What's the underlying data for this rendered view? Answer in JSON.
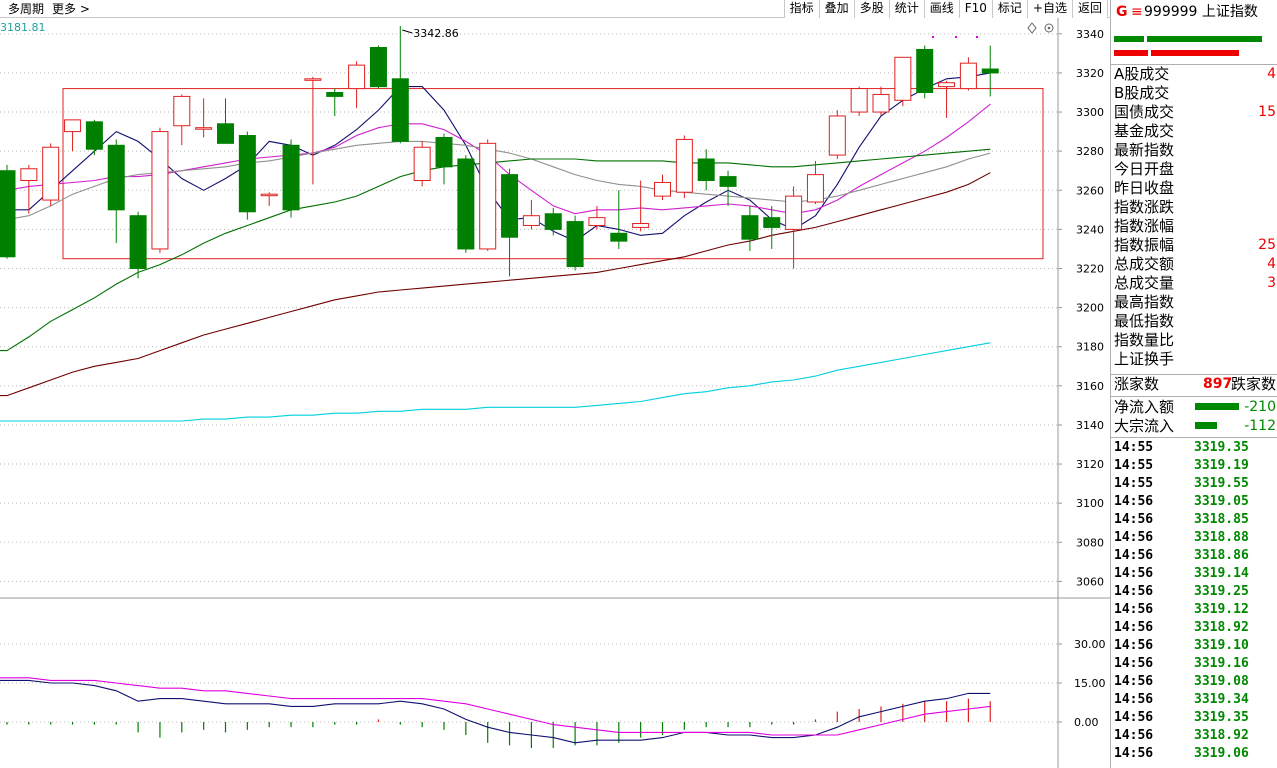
{
  "toolbar": {
    "period_label": "多周期",
    "more_label": "更多 >",
    "buttons": [
      "指标",
      "叠加",
      "多股",
      "统计",
      "画线",
      "F10",
      "标记",
      "+自选",
      "返回"
    ]
  },
  "chart_data": {
    "type": "candlestick",
    "top_left_label": "3181.81",
    "max_marker_label": "3342.86",
    "price_axis_ticks": [
      3340,
      3320,
      3300,
      3280,
      3260,
      3240,
      3220,
      3200,
      3180,
      3160,
      3140,
      3120,
      3100,
      3080,
      3060
    ],
    "price_range": [
      3051,
      3344
    ],
    "candles": [
      [
        3270,
        3226,
        3273,
        3225
      ],
      [
        3265,
        3271,
        3273,
        3248
      ],
      [
        3255,
        3282,
        3284,
        3252
      ],
      [
        3290,
        3296,
        3296,
        3280
      ],
      [
        3295,
        3281,
        3296,
        3278
      ],
      [
        3283,
        3250,
        3286,
        3233
      ],
      [
        3247,
        3220,
        3249,
        3215
      ],
      [
        3230,
        3290,
        3292,
        3228
      ],
      [
        3293,
        3308,
        3309,
        3283
      ],
      [
        3292,
        3292,
        3307,
        3287
      ],
      [
        3294,
        3284,
        3307,
        3284
      ],
      [
        3288,
        3249,
        3290,
        3245
      ],
      [
        3258,
        3258,
        3259,
        3252
      ],
      [
        3283,
        3250,
        3286,
        3246
      ],
      [
        3317,
        3317,
        3318,
        3263
      ],
      [
        3310,
        3308,
        3312,
        3298
      ],
      [
        3312,
        3324,
        3326,
        3302
      ],
      [
        3333,
        3313,
        3334,
        3312
      ],
      [
        3317,
        3285,
        3344,
        3284
      ],
      [
        3265,
        3282,
        3285,
        3262
      ],
      [
        3287,
        3272,
        3289,
        3263
      ],
      [
        3276,
        3230,
        3278,
        3228
      ],
      [
        3230,
        3284,
        3286,
        3229
      ],
      [
        3268,
        3236,
        3271,
        3216
      ],
      [
        3242,
        3247,
        3255,
        3240
      ],
      [
        3248,
        3240,
        3251,
        3237
      ],
      [
        3244,
        3221,
        3247,
        3219
      ],
      [
        3242,
        3246,
        3252,
        3240
      ],
      [
        3238,
        3234,
        3260,
        3230
      ],
      [
        3241,
        3243,
        3265,
        3239
      ],
      [
        3257,
        3264,
        3268,
        3255
      ],
      [
        3259,
        3286,
        3288,
        3256
      ],
      [
        3276,
        3265,
        3281,
        3260
      ],
      [
        3267,
        3262,
        3270,
        3252
      ],
      [
        3247,
        3235,
        3252,
        3229
      ],
      [
        3246,
        3241,
        3252,
        3230
      ],
      [
        3240,
        3257,
        3262,
        3220
      ],
      [
        3254,
        3268,
        3275,
        3253
      ],
      [
        3278,
        3298,
        3301,
        3276
      ],
      [
        3300,
        3312,
        3313,
        3298
      ],
      [
        3300,
        3309,
        3313,
        3298
      ],
      [
        3306,
        3328,
        3328,
        3303
      ],
      [
        3332,
        3310,
        3334,
        3307
      ],
      [
        3313,
        3315,
        3316,
        3297
      ],
      [
        3312,
        3325,
        3328,
        3311
      ],
      [
        3322,
        3320,
        3334,
        3308
      ]
    ],
    "ma_lines": [
      {
        "color": "#101070",
        "values": [
          3250,
          3250,
          3260,
          3270,
          3280,
          3290,
          3285,
          3276,
          3266,
          3260,
          3266,
          3273,
          3285,
          3283,
          3278,
          3283,
          3291,
          3301,
          3313,
          3313,
          3301,
          3283,
          3260,
          3245,
          3246,
          3239,
          3234,
          3242,
          3240,
          3237,
          3238,
          3247,
          3254,
          3260,
          3255,
          3245,
          3240,
          3247,
          3263,
          3282,
          3298,
          3306,
          3312,
          3317,
          3318,
          3320
        ]
      },
      {
        "color": "#d020d0",
        "values": [
          3260,
          3262,
          3263,
          3264,
          3265,
          3267,
          3267,
          3268,
          3270,
          3272,
          3274,
          3276,
          3277,
          3278,
          3279,
          3282,
          3288,
          3292,
          3294,
          3294,
          3291,
          3285,
          3278,
          3268,
          3260,
          3252,
          3248,
          3250,
          3250,
          3251,
          3250,
          3251,
          3252,
          3253,
          3252,
          3250,
          3248,
          3250,
          3255,
          3262,
          3268,
          3274,
          3280,
          3287,
          3295,
          3304
        ]
      },
      {
        "color": "#909090",
        "values": [
          3245,
          3247,
          3252,
          3258,
          3262,
          3266,
          3268,
          3269,
          3270,
          3271,
          3272,
          3274,
          3275,
          3277,
          3279,
          3281,
          3283,
          3284,
          3285,
          3285,
          3284,
          3283,
          3281,
          3279,
          3276,
          3272,
          3268,
          3265,
          3263,
          3262,
          3260,
          3259,
          3258,
          3257,
          3256,
          3255,
          3254,
          3255,
          3257,
          3260,
          3263,
          3266,
          3269,
          3272,
          3276,
          3279
        ]
      },
      {
        "color": "#007000",
        "values": [
          3178,
          3185,
          3193,
          3199,
          3205,
          3212,
          3218,
          3222,
          3227,
          3233,
          3238,
          3242,
          3246,
          3250,
          3252,
          3254,
          3257,
          3262,
          3267,
          3270,
          3272,
          3273,
          3274,
          3275,
          3276,
          3276,
          3276,
          3275,
          3275,
          3275,
          3275,
          3274,
          3274,
          3274,
          3273,
          3272,
          3272,
          3273,
          3274,
          3275,
          3276,
          3277,
          3278,
          3279,
          3280,
          3281
        ]
      },
      {
        "color": "#700000",
        "values": [
          3155,
          3159,
          3163,
          3167,
          3170,
          3172,
          3174,
          3178,
          3182,
          3186,
          3189,
          3192,
          3195,
          3198,
          3201,
          3204,
          3206,
          3208,
          3209,
          3210,
          3211,
          3212,
          3213,
          3214,
          3215,
          3216,
          3217,
          3218,
          3220,
          3222,
          3224,
          3226,
          3229,
          3232,
          3234,
          3237,
          3239,
          3241,
          3244,
          3247,
          3250,
          3253,
          3256,
          3259,
          3263,
          3269
        ]
      },
      {
        "color": "#00d0e0",
        "values": [
          3142,
          3142,
          3142,
          3142,
          3142,
          3142,
          3142,
          3142,
          3142,
          3143,
          3143,
          3144,
          3144,
          3145,
          3145,
          3146,
          3146,
          3147,
          3147,
          3148,
          3148,
          3148,
          3149,
          3149,
          3149,
          3149,
          3149,
          3150,
          3151,
          3152,
          3154,
          3156,
          3157,
          3159,
          3160,
          3162,
          3163,
          3165,
          3168,
          3170,
          3172,
          3174,
          3176,
          3178,
          3180,
          3182
        ]
      }
    ],
    "box_price_range": [
      3225,
      3312
    ],
    "indicator_axis_ticks": [
      30.0,
      15.0,
      0.0
    ],
    "indicator_range": [
      -10,
      40
    ],
    "indicator_lines": [
      {
        "color": "#101070",
        "values": [
          16,
          16,
          15,
          15,
          14,
          12,
          8,
          9,
          9,
          8,
          7,
          7,
          7,
          6,
          6,
          7,
          7,
          7,
          8,
          7,
          5,
          1,
          -2,
          -4,
          -5,
          -6,
          -8,
          -7,
          -7,
          -7,
          -6,
          -4,
          -4,
          -5,
          -5,
          -6,
          -6,
          -5,
          -2,
          2,
          4,
          6,
          8,
          9,
          11,
          11
        ]
      },
      {
        "color": "#e000e0",
        "values": [
          17,
          17,
          16,
          16,
          16,
          15,
          14,
          13,
          13,
          12,
          12,
          11,
          10,
          9,
          9,
          9,
          9,
          9,
          9,
          9,
          8,
          7,
          5,
          3,
          1,
          -1,
          -2,
          -3,
          -4,
          -4,
          -4,
          -4,
          -4,
          -4,
          -4,
          -5,
          -5,
          -5,
          -5,
          -3,
          -1,
          1,
          3,
          4,
          5,
          6
        ]
      }
    ],
    "indicator_bars": [
      -1,
      -1,
      -1,
      -1,
      -1,
      -1,
      -4,
      -6,
      -4,
      -3,
      -4,
      -3,
      -2,
      -2,
      -2,
      -1,
      -1,
      1,
      -1,
      -2,
      -3,
      -5,
      -8,
      -9,
      -10,
      -10,
      -9,
      -9,
      -8,
      -6,
      -5,
      -3,
      -2,
      -2,
      -2,
      -1,
      -1,
      1,
      4,
      5,
      6,
      7,
      8,
      8,
      9,
      8
    ]
  },
  "right_panel": {
    "header": {
      "g": "G",
      "eq": "≡",
      "title": "999999 上证指数"
    },
    "rows": [
      {
        "label": "A股成交",
        "value": "4"
      },
      {
        "label": "B股成交",
        "value": ""
      },
      {
        "label": "国债成交",
        "value": "15"
      },
      {
        "label": "基金成交",
        "value": ""
      },
      {
        "label": "最新指数",
        "value": ""
      },
      {
        "label": "今日开盘",
        "value": ""
      },
      {
        "label": "昨日收盘",
        "value": ""
      },
      {
        "label": "指数涨跌",
        "value": ""
      },
      {
        "label": "指数涨幅",
        "value": ""
      },
      {
        "label": "指数振幅",
        "value": "25"
      },
      {
        "label": "总成交额",
        "value": "4"
      },
      {
        "label": "总成交量",
        "value": "3"
      },
      {
        "label": "最高指数",
        "value": ""
      },
      {
        "label": "最低指数",
        "value": ""
      },
      {
        "label": "指数量比",
        "value": ""
      },
      {
        "label": "上证换手",
        "value": ""
      }
    ],
    "updown": {
      "up_label": "涨家数",
      "up_value": "897",
      "down_label": "跌家数"
    },
    "flows": [
      {
        "label": "净流入额",
        "value": "-210"
      },
      {
        "label": "大宗流入",
        "value": "-112"
      }
    ],
    "ticks": [
      {
        "time": "14:55",
        "price": "3319.35"
      },
      {
        "time": "14:55",
        "price": "3319.19"
      },
      {
        "time": "14:55",
        "price": "3319.55"
      },
      {
        "time": "14:56",
        "price": "3319.05"
      },
      {
        "time": "14:56",
        "price": "3318.85"
      },
      {
        "time": "14:56",
        "price": "3318.88"
      },
      {
        "time": "14:56",
        "price": "3318.86"
      },
      {
        "time": "14:56",
        "price": "3319.14"
      },
      {
        "time": "14:56",
        "price": "3319.25"
      },
      {
        "time": "14:56",
        "price": "3319.12"
      },
      {
        "time": "14:56",
        "price": "3318.92"
      },
      {
        "time": "14:56",
        "price": "3319.10"
      },
      {
        "time": "14:56",
        "price": "3319.16"
      },
      {
        "time": "14:56",
        "price": "3319.08"
      },
      {
        "time": "14:56",
        "price": "3319.34"
      },
      {
        "time": "14:56",
        "price": "3319.35"
      },
      {
        "time": "14:56",
        "price": "3318.92"
      },
      {
        "time": "14:56",
        "price": "3319.06"
      }
    ]
  }
}
